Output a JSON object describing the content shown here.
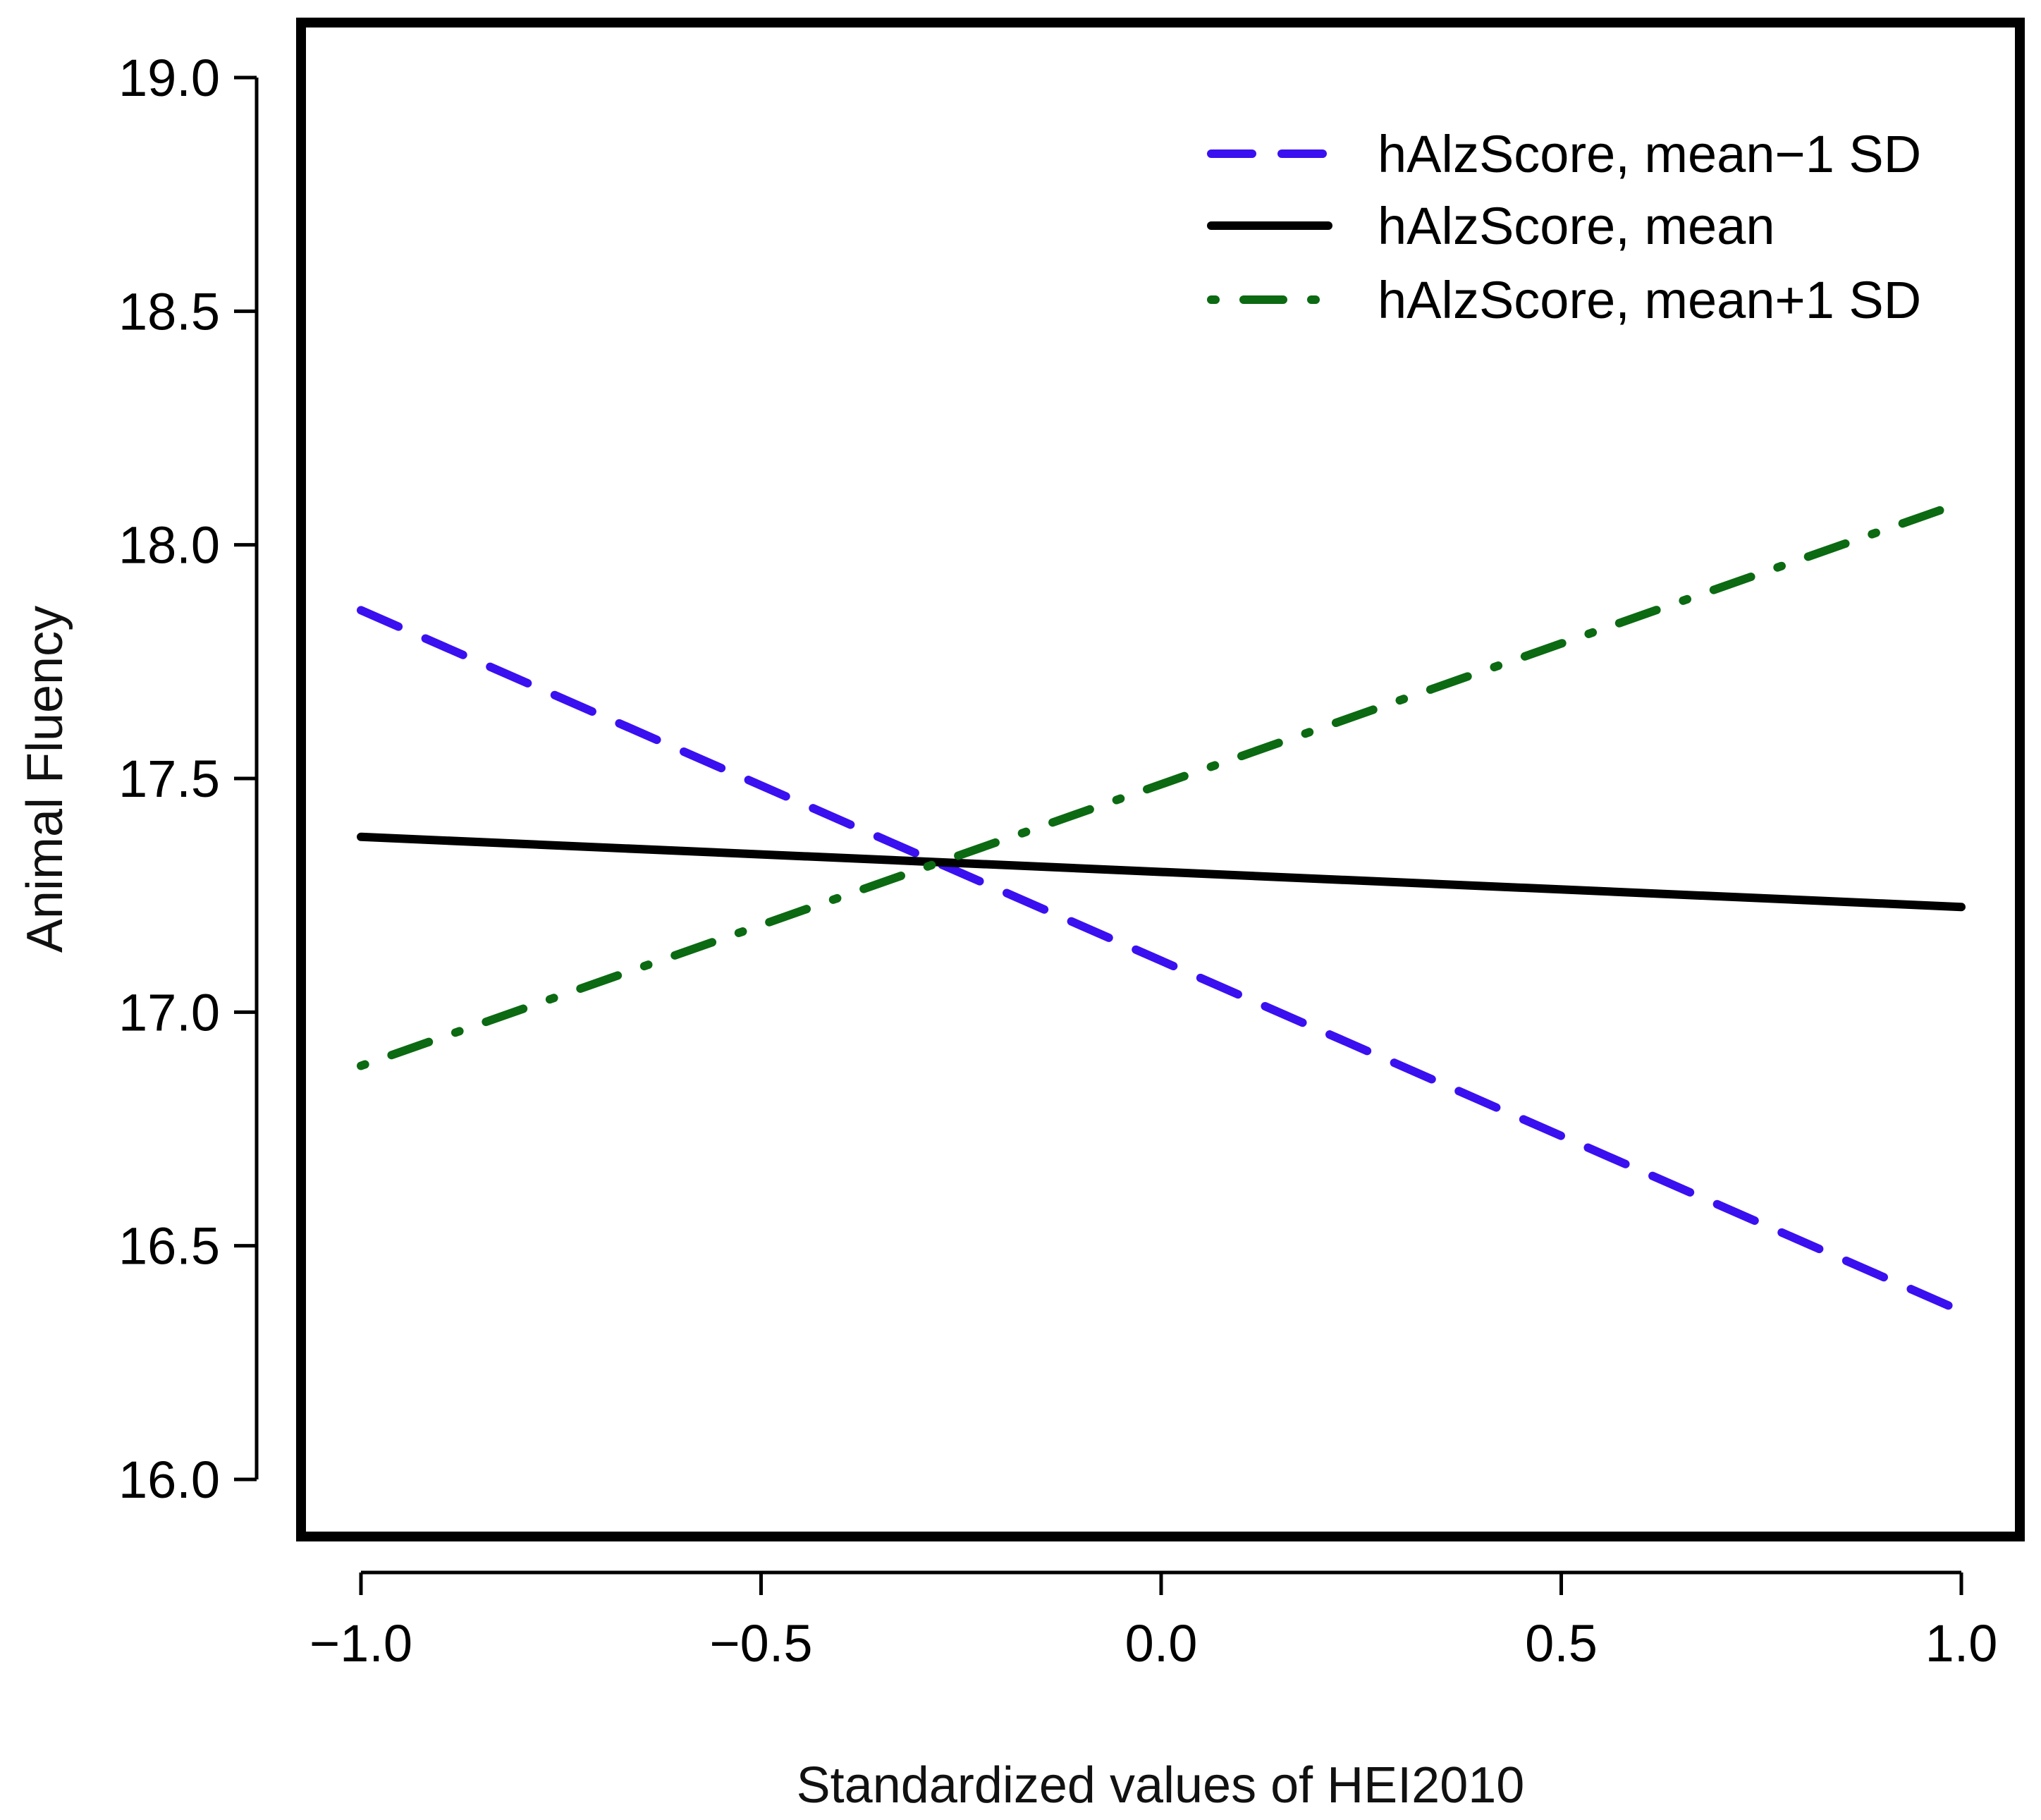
{
  "chart_data": {
    "type": "line",
    "title": "",
    "xlabel": "Standardized values of HEI2010",
    "ylabel": "Animal Fluency",
    "xlim": [
      -1.0,
      1.0
    ],
    "ylim": [
      16.0,
      19.0
    ],
    "x_ticks": [
      -1.0,
      -0.5,
      0.0,
      0.5,
      1.0
    ],
    "x_tick_labels": [
      "−1.0",
      "−0.5",
      "0.0",
      "0.5",
      "1.0"
    ],
    "y_ticks": [
      16.0,
      16.5,
      17.0,
      17.5,
      18.0,
      18.5,
      19.0
    ],
    "y_tick_labels": [
      "16.0",
      "16.5",
      "17.0",
      "17.5",
      "18.0",
      "18.5",
      "19.0"
    ],
    "grid": false,
    "legend_position": "top-right",
    "series": [
      {
        "name": "hAlzScore, mean−1 SD",
        "x": [
          -1.0,
          1.0
        ],
        "values": [
          17.86,
          16.36
        ],
        "color": "#3a10f0",
        "style": "dashed"
      },
      {
        "name": "hAlzScore, mean",
        "x": [
          -1.0,
          1.0
        ],
        "values": [
          17.375,
          17.225
        ],
        "color": "#000000",
        "style": "solid"
      },
      {
        "name": "hAlzScore, mean+1 SD",
        "x": [
          -1.0,
          1.0
        ],
        "values": [
          16.885,
          18.09
        ],
        "color": "#0b6a12",
        "style": "dashdot"
      }
    ]
  }
}
